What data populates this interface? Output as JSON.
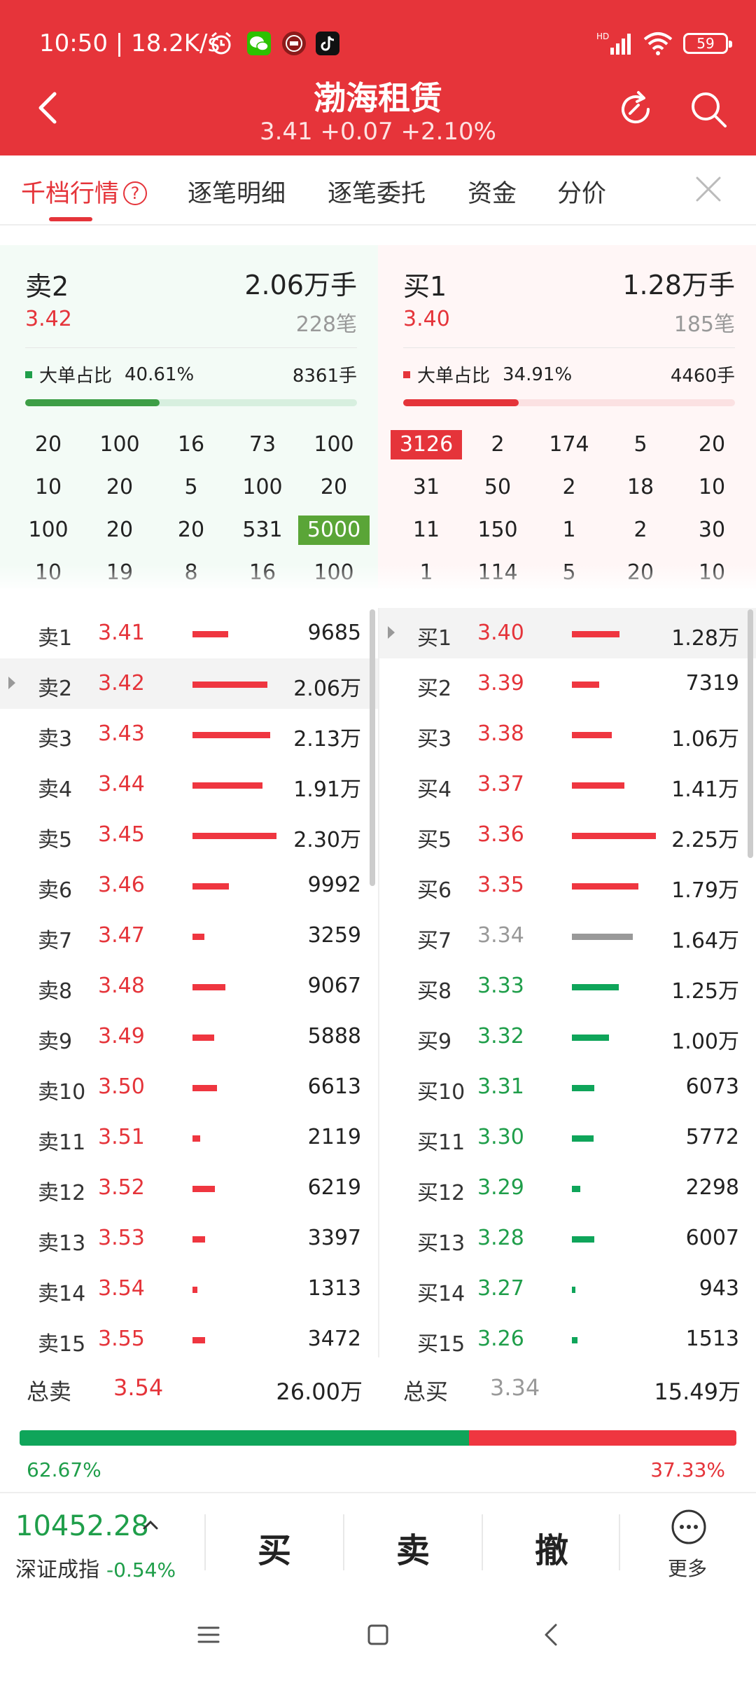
{
  "status": {
    "time": "10:50",
    "speed": "18.2K/s",
    "battery": "59",
    "net": "HD"
  },
  "header": {
    "title": "渤海租赁",
    "quote": "3.41 +0.07 +2.10%"
  },
  "tabs": [
    {
      "label": "千档行情",
      "active": true
    },
    {
      "label": "逐笔明细"
    },
    {
      "label": "逐笔委托"
    },
    {
      "label": "资金"
    },
    {
      "label": "分价"
    }
  ],
  "help_mark": "?",
  "sell_panel": {
    "level": "卖2",
    "volume": "2.06万手",
    "price": "3.42",
    "count": "228笔",
    "big_label": "大单占比",
    "big_pct": "40.61%",
    "big_vol": "8361手",
    "big_fraction": 0.4061,
    "grid": [
      [
        "20",
        "100",
        "16",
        "73",
        "100"
      ],
      [
        "10",
        "20",
        "5",
        "100",
        "20"
      ],
      [
        "100",
        "20",
        "20",
        "531",
        "5000"
      ],
      [
        "10",
        "19",
        "8",
        "16",
        "100"
      ]
    ]
  },
  "buy_panel": {
    "level": "买1",
    "volume": "1.28万手",
    "price": "3.40",
    "count": "185笔",
    "big_label": "大单占比",
    "big_pct": "34.91%",
    "big_vol": "4460手",
    "big_fraction": 0.3491,
    "grid": [
      [
        "3126",
        "2",
        "174",
        "5",
        "20"
      ],
      [
        "31",
        "50",
        "2",
        "18",
        "10"
      ],
      [
        "11",
        "150",
        "1",
        "2",
        "30"
      ],
      [
        "1",
        "114",
        "5",
        "20",
        "10"
      ]
    ]
  },
  "sell_levels": [
    {
      "label": "卖1",
      "price": "3.41",
      "volume": "9685",
      "qty": 9685
    },
    {
      "label": "卖2",
      "price": "3.42",
      "volume": "2.06万",
      "qty": 20600,
      "selected": true
    },
    {
      "label": "卖3",
      "price": "3.43",
      "volume": "2.13万",
      "qty": 21300
    },
    {
      "label": "卖4",
      "price": "3.44",
      "volume": "1.91万",
      "qty": 19100
    },
    {
      "label": "卖5",
      "price": "3.45",
      "volume": "2.30万",
      "qty": 23000
    },
    {
      "label": "卖6",
      "price": "3.46",
      "volume": "9992",
      "qty": 9992
    },
    {
      "label": "卖7",
      "price": "3.47",
      "volume": "3259",
      "qty": 3259
    },
    {
      "label": "卖8",
      "price": "3.48",
      "volume": "9067",
      "qty": 9067
    },
    {
      "label": "卖9",
      "price": "3.49",
      "volume": "5888",
      "qty": 5888
    },
    {
      "label": "卖10",
      "price": "3.50",
      "volume": "6613",
      "qty": 6613
    },
    {
      "label": "卖11",
      "price": "3.51",
      "volume": "2119",
      "qty": 2119
    },
    {
      "label": "卖12",
      "price": "3.52",
      "volume": "6219",
      "qty": 6219
    },
    {
      "label": "卖13",
      "price": "3.53",
      "volume": "3397",
      "qty": 3397
    },
    {
      "label": "卖14",
      "price": "3.54",
      "volume": "1313",
      "qty": 1313
    },
    {
      "label": "卖15",
      "price": "3.55",
      "volume": "3472",
      "qty": 3472
    }
  ],
  "buy_levels": [
    {
      "label": "买1",
      "price": "3.40",
      "volume": "1.28万",
      "qty": 12800,
      "tone": "red",
      "selected": true
    },
    {
      "label": "买2",
      "price": "3.39",
      "volume": "7319",
      "qty": 7319,
      "tone": "red"
    },
    {
      "label": "买3",
      "price": "3.38",
      "volume": "1.06万",
      "qty": 10600,
      "tone": "red"
    },
    {
      "label": "买4",
      "price": "3.37",
      "volume": "1.41万",
      "qty": 14100,
      "tone": "red"
    },
    {
      "label": "买5",
      "price": "3.36",
      "volume": "2.25万",
      "qty": 22500,
      "tone": "red"
    },
    {
      "label": "买6",
      "price": "3.35",
      "volume": "1.79万",
      "qty": 17900,
      "tone": "red"
    },
    {
      "label": "买7",
      "price": "3.34",
      "volume": "1.64万",
      "qty": 16400,
      "tone": "gray"
    },
    {
      "label": "买8",
      "price": "3.33",
      "volume": "1.25万",
      "qty": 12500,
      "tone": "green"
    },
    {
      "label": "买9",
      "price": "3.32",
      "volume": "1.00万",
      "qty": 10000,
      "tone": "green"
    },
    {
      "label": "买10",
      "price": "3.31",
      "volume": "6073",
      "qty": 6073,
      "tone": "green"
    },
    {
      "label": "买11",
      "price": "3.30",
      "volume": "5772",
      "qty": 5772,
      "tone": "green"
    },
    {
      "label": "买12",
      "price": "3.29",
      "volume": "2298",
      "qty": 2298,
      "tone": "green"
    },
    {
      "label": "买13",
      "price": "3.28",
      "volume": "6007",
      "qty": 6007,
      "tone": "green"
    },
    {
      "label": "买14",
      "price": "3.27",
      "volume": "943",
      "qty": 943,
      "tone": "green"
    },
    {
      "label": "买15",
      "price": "3.26",
      "volume": "1513",
      "qty": 1513,
      "tone": "green"
    }
  ],
  "totals": {
    "sell_label": "总卖",
    "sell_price": "3.54",
    "sell_volume": "26.00万",
    "buy_label": "总买",
    "buy_price": "3.34",
    "buy_volume": "15.49万",
    "sell_pct": "62.67%",
    "buy_pct": "37.33%",
    "sell_fraction": 0.6267
  },
  "tradebar": {
    "index_value": "10452.28",
    "index_name": "深证成指",
    "index_change": "-0.54%",
    "buy": "买",
    "sell": "卖",
    "cancel": "撤",
    "more": "更多"
  },
  "colors": {
    "red": "#e5343a",
    "green": "#1f9e4a",
    "gray": "#999999",
    "bar_green": "#0fa55a",
    "bar_red": "#ef3640"
  },
  "icons": [
    "back-arrow-icon",
    "refresh-icon",
    "search-icon",
    "close-icon",
    "more-icon",
    "alarm-icon",
    "wechat-icon",
    "app-icon",
    "tiktok-icon",
    "signal-icon",
    "wifi-icon",
    "battery-icon"
  ]
}
